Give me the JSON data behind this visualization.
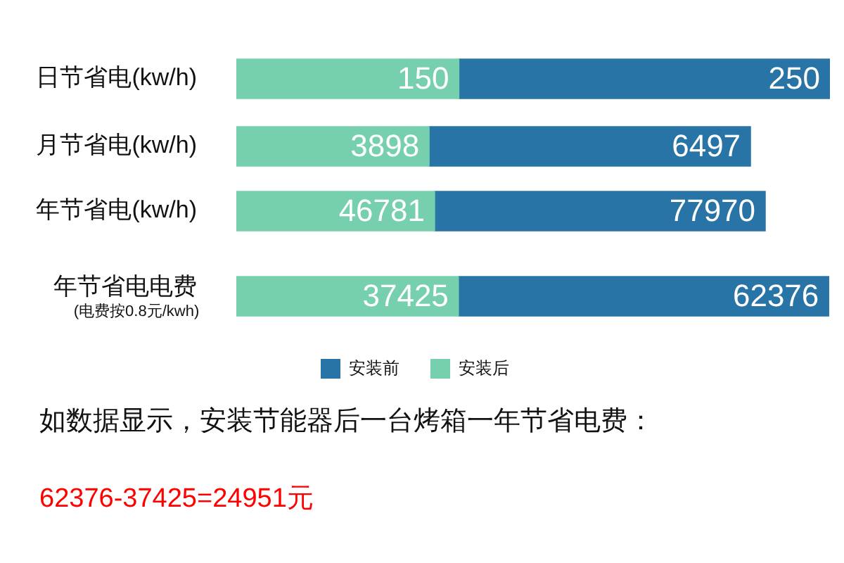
{
  "chart_data": [
    {
      "type": "bar",
      "orientation": "horizontal",
      "stacked": true,
      "categories": [
        "日节省电(kw/h)"
      ],
      "series": [
        {
          "color": "#76d0ad",
          "values": [
            150
          ]
        },
        {
          "color": "#2874a6",
          "values": [
            250
          ]
        }
      ],
      "tick_labels": "y",
      "data_labels": true
    },
    {
      "type": "bar",
      "orientation": "horizontal",
      "stacked": true,
      "categories": [
        "月节省电(kw/h)"
      ],
      "series": [
        {
          "color": "#76d0ad",
          "values": [
            3898
          ]
        },
        {
          "color": "#2874a6",
          "values": [
            6497
          ]
        }
      ],
      "tick_labels": "y",
      "data_labels": true
    },
    {
      "type": "bar",
      "orientation": "horizontal",
      "stacked": true,
      "categories": [
        "年节省电(kw/h)"
      ],
      "series": [
        {
          "color": "#76d0ad",
          "values": [
            46781
          ]
        },
        {
          "color": "#2874a6",
          "values": [
            77970
          ]
        }
      ],
      "tick_labels": "y",
      "data_labels": true
    },
    {
      "type": "bar",
      "orientation": "horizontal",
      "stacked": true,
      "categories": [
        "年节省电电费"
      ],
      "series": [
        {
          "name": "安装后",
          "color": "#76d0ad",
          "values": [
            37425
          ]
        },
        {
          "name": "安装前",
          "color": "#2874a6",
          "values": [
            62376
          ]
        }
      ],
      "tick_labels": "y",
      "data_labels": true,
      "legend": "bottom",
      "annotations": [
        "(电费按0.8元/kwh)"
      ]
    },
    {
      "type": "other",
      "annotations": [
        "如数据显示，安装节能器后一台烤箱一年节省电费：",
        "62376-37425=24951元"
      ]
    }
  ]
}
